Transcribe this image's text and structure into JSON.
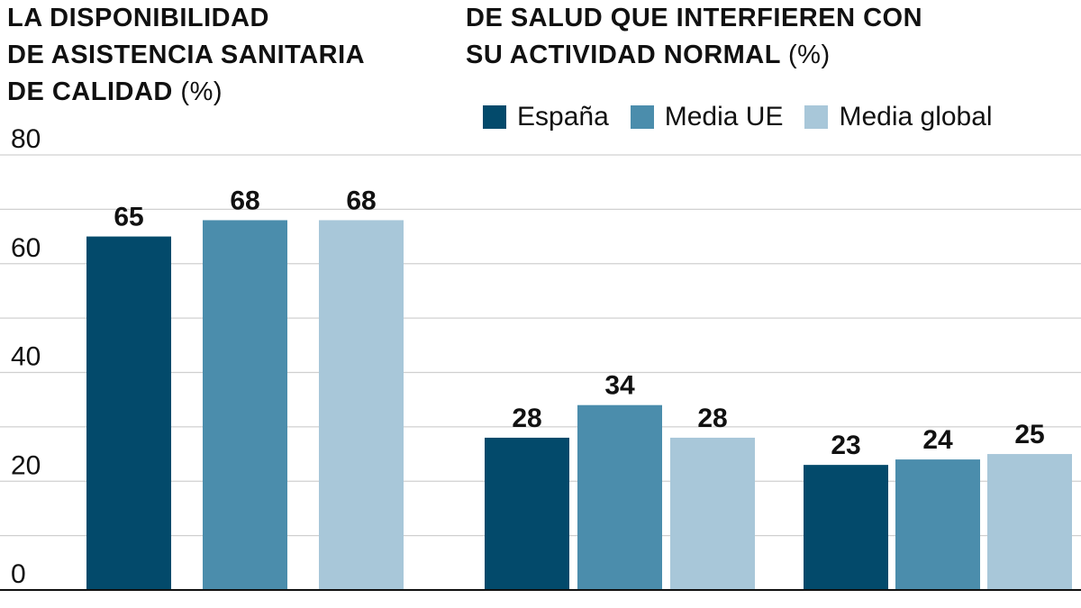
{
  "colors": {
    "espana": "#034a6b",
    "media_ue": "#4b8dac",
    "media_global": "#a8c7d9",
    "grid": "#d0d0d0",
    "axis": "#111111"
  },
  "titles": {
    "left": {
      "lines": [
        "LA DISPONIBILIDAD",
        "DE ASISTENCIA SANITARIA",
        "DE CALIDAD"
      ],
      "unit": "(%)"
    },
    "right": {
      "lines": [
        "DE SALUD QUE INTERFIEREN CON",
        "SU ACTIVIDAD NORMAL"
      ],
      "unit": "(%)"
    }
  },
  "legend": [
    {
      "label": "España",
      "color_key": "espana"
    },
    {
      "label": "Media UE",
      "color_key": "media_ue"
    },
    {
      "label": "Media global",
      "color_key": "media_global"
    }
  ],
  "chart_data": {
    "type": "bar",
    "ylim": [
      0,
      80
    ],
    "yticks": [
      0,
      20,
      40,
      60,
      80
    ],
    "grid": true,
    "legend_position": "top-right",
    "groups": [
      {
        "label": "",
        "values": [
          65,
          68,
          68
        ]
      },
      {
        "label": "",
        "values": [
          28,
          34,
          28
        ]
      },
      {
        "label": "",
        "values": [
          23,
          24,
          25
        ]
      }
    ]
  }
}
